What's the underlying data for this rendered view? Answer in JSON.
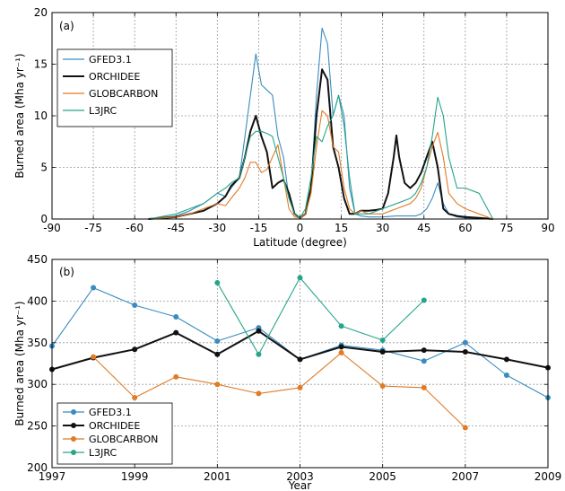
{
  "colors": {
    "GFED3.1": "#3a8cc0",
    "ORCHIDEE": "#111111",
    "GLOBCARBON": "#e07b27",
    "L3JRC": "#26a58a"
  },
  "chart_data": [
    {
      "type": "line",
      "panel_label": "(a)",
      "xlabel": "Latitude (degree)",
      "ylabel": "Burned area (Mha yr⁻¹)",
      "xlim": [
        -90,
        90
      ],
      "ylim": [
        0,
        20
      ],
      "xticks": [
        -90,
        -75,
        -60,
        -45,
        -30,
        -15,
        0,
        15,
        30,
        45,
        60,
        75,
        90
      ],
      "yticks": [
        0,
        5,
        10,
        15,
        20
      ],
      "grid": true,
      "legend_position": "upper-left",
      "series": [
        {
          "name": "GFED3.1",
          "x": [
            -55,
            -45,
            -40,
            -35,
            -30,
            -27,
            -25,
            -22,
            -20,
            -18,
            -16,
            -14,
            -12,
            -10,
            -8,
            -6,
            -4,
            -2,
            0,
            2,
            4,
            6,
            8,
            10,
            12,
            14,
            16,
            18,
            20,
            22,
            25,
            30,
            35,
            40,
            42,
            44,
            46,
            48,
            50,
            52,
            54,
            57,
            60,
            65,
            70
          ],
          "y": [
            0,
            0.3,
            0.8,
            1.5,
            2.5,
            2.2,
            3.0,
            4.0,
            8.0,
            12.0,
            16.0,
            13.0,
            12.5,
            12.0,
            8.0,
            6.0,
            2.0,
            0.5,
            0.1,
            0.5,
            3.0,
            12.0,
            18.5,
            17.0,
            10.0,
            12.0,
            10.0,
            3.0,
            0.5,
            0.3,
            0.2,
            0.2,
            0.3,
            0.3,
            0.3,
            0.5,
            1.0,
            2.0,
            3.5,
            1.5,
            0.5,
            0.2,
            0.1,
            0,
            0
          ]
        },
        {
          "name": "ORCHIDEE",
          "x": [
            -55,
            -45,
            -40,
            -35,
            -30,
            -27,
            -25,
            -22,
            -20,
            -18,
            -16,
            -14,
            -12,
            -10,
            -8,
            -6,
            -4,
            -2,
            0,
            2,
            4,
            6,
            8,
            10,
            12,
            14,
            16,
            18,
            20,
            22,
            25,
            28,
            30,
            32,
            34,
            35,
            36,
            38,
            40,
            42,
            44,
            46,
            48,
            50,
            52,
            54,
            57,
            60,
            65,
            70
          ],
          "y": [
            0,
            0.2,
            0.5,
            0.8,
            1.5,
            2.2,
            3.2,
            4.0,
            6.0,
            8.5,
            10.0,
            8.0,
            6.5,
            3.0,
            3.5,
            3.8,
            2.5,
            0.5,
            0.1,
            0.5,
            3.0,
            10.0,
            14.5,
            13.5,
            7.0,
            5.0,
            2.0,
            0.5,
            0.5,
            0.8,
            0.8,
            0.9,
            1.0,
            2.5,
            6.0,
            8.1,
            6.0,
            3.5,
            3.0,
            3.5,
            4.5,
            6.0,
            7.5,
            5.0,
            1.0,
            0.5,
            0.3,
            0.2,
            0.1,
            0
          ]
        },
        {
          "name": "GLOBCARBON",
          "x": [
            -55,
            -45,
            -40,
            -35,
            -30,
            -27,
            -25,
            -22,
            -20,
            -18,
            -16,
            -14,
            -12,
            -10,
            -8,
            -6,
            -4,
            -2,
            0,
            2,
            4,
            6,
            8,
            10,
            12,
            14,
            16,
            18,
            20,
            22,
            25,
            30,
            35,
            40,
            42,
            44,
            46,
            48,
            50,
            52,
            54,
            57,
            60,
            65,
            70
          ],
          "y": [
            0,
            0.2,
            0.5,
            1.0,
            1.5,
            1.3,
            2.0,
            3.0,
            4.0,
            5.5,
            5.5,
            4.5,
            4.8,
            6.0,
            7.2,
            4.0,
            1.0,
            0.2,
            0.1,
            0.5,
            2.5,
            7.0,
            10.5,
            10.0,
            7.0,
            6.5,
            3.0,
            1.0,
            0.5,
            0.8,
            0.5,
            0.5,
            1.0,
            1.5,
            2.0,
            3.0,
            5.0,
            7.0,
            8.4,
            6.0,
            2.5,
            1.5,
            1.0,
            0.5,
            0
          ]
        },
        {
          "name": "L3JRC",
          "x": [
            -55,
            -45,
            -40,
            -35,
            -30,
            -27,
            -25,
            -22,
            -20,
            -18,
            -16,
            -14,
            -12,
            -10,
            -8,
            -6,
            -4,
            -2,
            0,
            2,
            4,
            6,
            8,
            10,
            12,
            14,
            16,
            18,
            20,
            22,
            25,
            30,
            35,
            40,
            42,
            44,
            46,
            48,
            50,
            52,
            54,
            57,
            60,
            65,
            70
          ],
          "y": [
            0,
            0.5,
            1.0,
            1.5,
            2.5,
            3.0,
            3.5,
            4.0,
            6.0,
            8.0,
            8.5,
            8.5,
            8.3,
            8.0,
            6.0,
            4.0,
            2.0,
            0.5,
            0.1,
            1.0,
            4.0,
            8.0,
            7.5,
            9.0,
            10.0,
            12.0,
            9.0,
            4.0,
            0.5,
            0.5,
            0.5,
            1.0,
            1.5,
            2.0,
            2.5,
            3.5,
            5.0,
            8.0,
            11.8,
            10.0,
            6.0,
            3.0,
            3.0,
            2.5,
            0
          ]
        }
      ]
    },
    {
      "type": "line",
      "panel_label": "(b)",
      "xlabel": "Year",
      "ylabel": "Burned area (Mha yr⁻¹)",
      "xlim": [
        1997,
        2009
      ],
      "ylim": [
        200,
        450
      ],
      "xticks": [
        1997,
        1999,
        2001,
        2003,
        2005,
        2007,
        2009
      ],
      "yticks": [
        200,
        250,
        300,
        350,
        400,
        450
      ],
      "grid": true,
      "legend_position": "lower-left",
      "series": [
        {
          "name": "GFED3.1",
          "x": [
            1997,
            1998,
            1999,
            2000,
            2001,
            2002,
            2003,
            2004,
            2005,
            2006,
            2007,
            2008,
            2009
          ],
          "y": [
            346,
            416,
            395,
            381,
            352,
            368,
            330,
            347,
            341,
            328,
            350,
            311,
            284
          ]
        },
        {
          "name": "ORCHIDEE",
          "x": [
            1997,
            1998,
            1999,
            2000,
            2001,
            2002,
            2003,
            2004,
            2005,
            2006,
            2007,
            2008,
            2009
          ],
          "y": [
            318,
            332,
            342,
            362,
            336,
            364,
            330,
            345,
            339,
            341,
            339,
            330,
            320
          ]
        },
        {
          "name": "GLOBCARBON",
          "x": [
            1998,
            1999,
            2000,
            2001,
            2002,
            2003,
            2004,
            2005,
            2006,
            2007
          ],
          "y": [
            333,
            284,
            309,
            300,
            289,
            296,
            338,
            298,
            296,
            248
          ]
        },
        {
          "name": "L3JRC",
          "x": [
            2001,
            2002,
            2003,
            2004,
            2005,
            2006
          ],
          "y": [
            422,
            336,
            428,
            370,
            353,
            401
          ]
        }
      ]
    }
  ]
}
